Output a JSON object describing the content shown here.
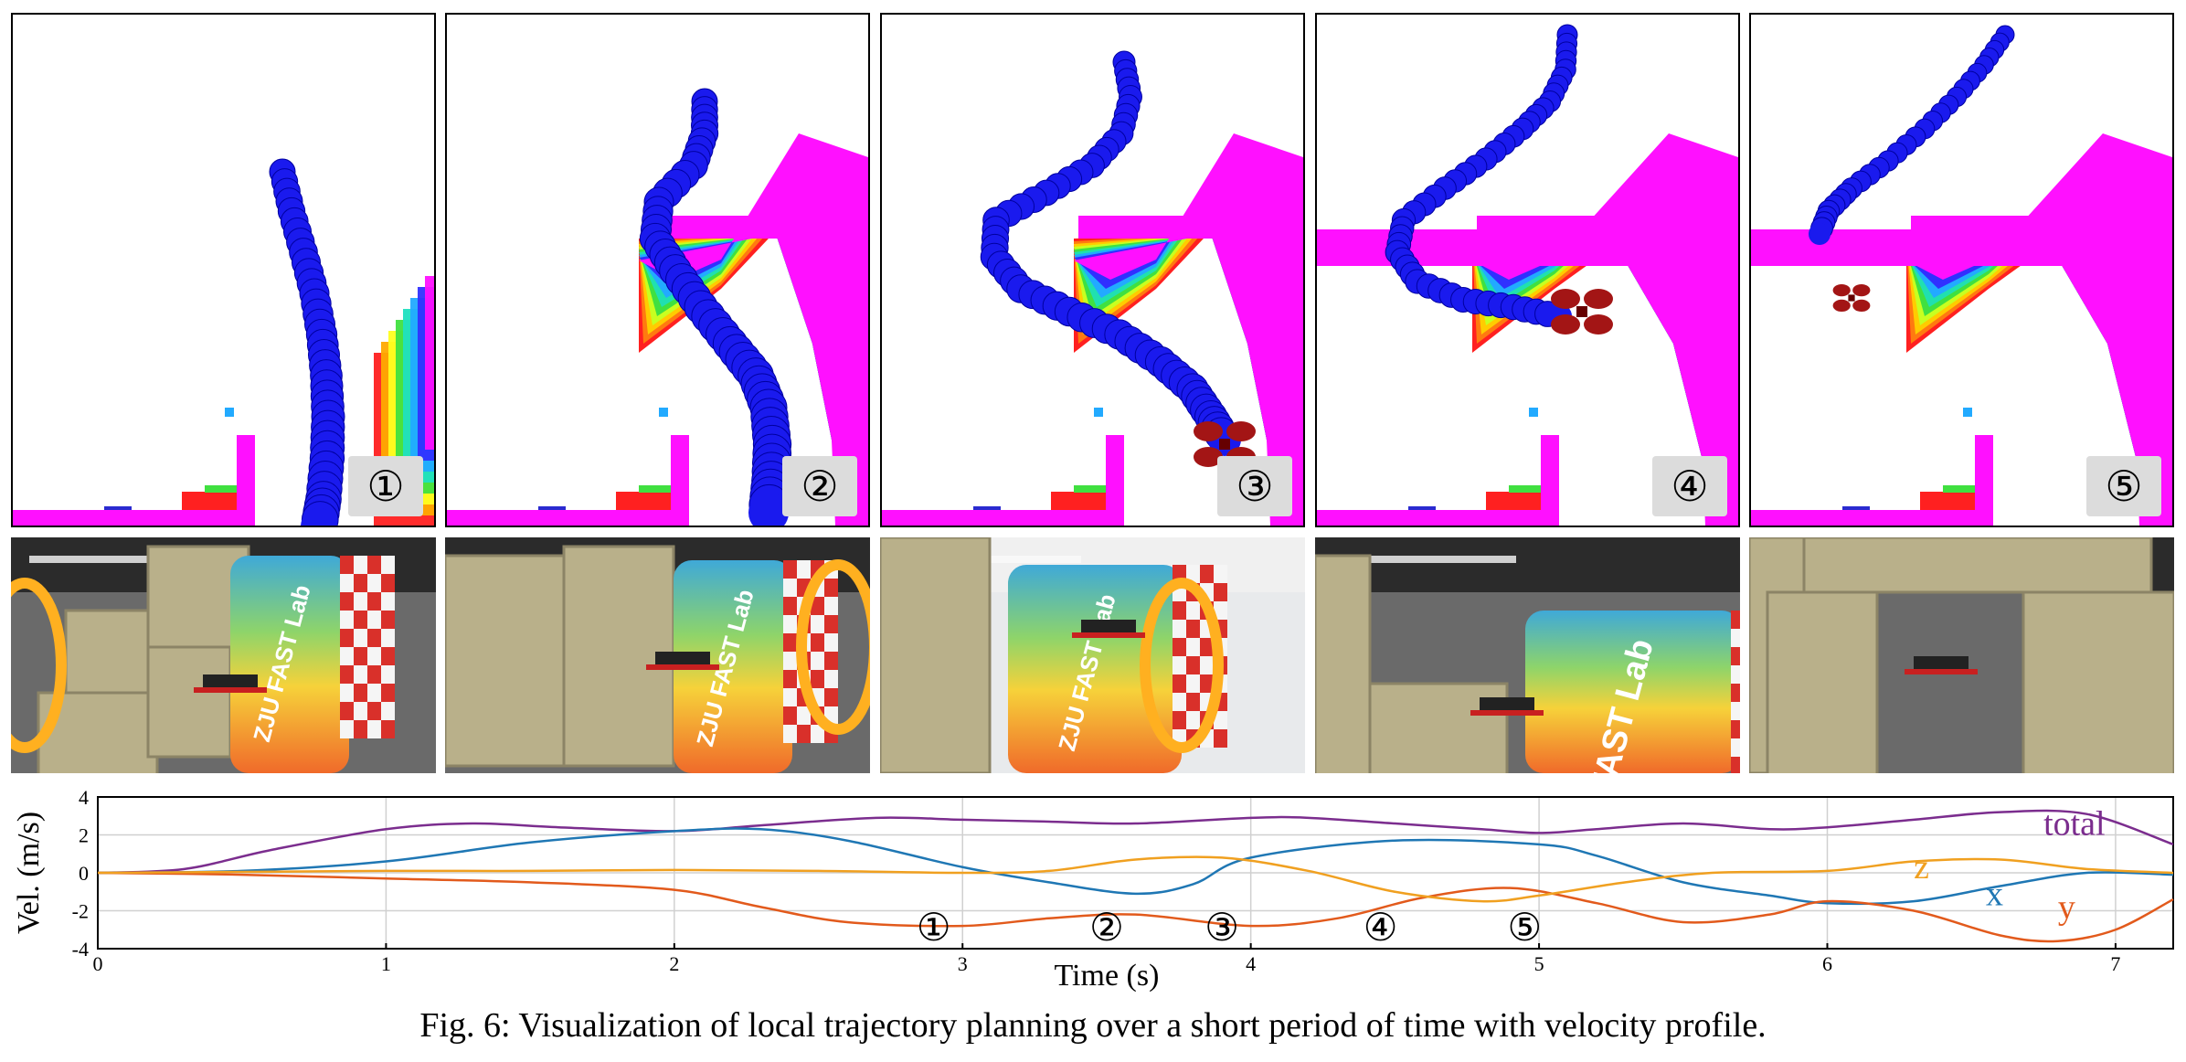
{
  "panels": [
    {
      "marker": "①"
    },
    {
      "marker": "②"
    },
    {
      "marker": "③"
    },
    {
      "marker": "④"
    },
    {
      "marker": "⑤"
    }
  ],
  "photos": [
    {
      "sign_text": "ZJU FAST Lab"
    },
    {
      "sign_text": "ZJU FAST Lab"
    },
    {
      "sign_text": "ZJU FAST Lab"
    },
    {
      "sign_text": "FAST Lab"
    },
    {
      "sign_text": ""
    }
  ],
  "colors": {
    "trajectory": "#1a1aee",
    "drone": "#a31515",
    "magenta": "#ff10ff",
    "total": "#7b2d8e",
    "x": "#1f77b4",
    "y": "#e25a1c",
    "z": "#f0a020"
  },
  "chart_data": {
    "type": "line",
    "xlabel": "Time (s)",
    "ylabel": "Vel. (m/s)",
    "xlim": [
      0,
      7.2
    ],
    "ylim": [
      -4,
      4
    ],
    "xticks": [
      "0",
      "1",
      "2",
      "3",
      "4",
      "5",
      "6",
      "7"
    ],
    "yticks": [
      "4",
      "2",
      "0",
      "-2",
      "-4"
    ],
    "grid": true,
    "series": [
      {
        "name": "total",
        "color": "#7b2d8e",
        "x": [
          0,
          0.3,
          0.6,
          1.0,
          1.3,
          1.6,
          2.0,
          2.3,
          2.7,
          3.0,
          3.3,
          3.6,
          4.0,
          4.2,
          4.5,
          4.8,
          5.0,
          5.2,
          5.5,
          5.8,
          6.0,
          6.3,
          6.6,
          6.9,
          7.2
        ],
        "y": [
          0,
          0.2,
          1.2,
          2.3,
          2.6,
          2.4,
          2.2,
          2.5,
          2.9,
          2.8,
          2.7,
          2.6,
          2.9,
          2.9,
          2.6,
          2.3,
          2.1,
          2.3,
          2.6,
          2.3,
          2.4,
          2.8,
          3.2,
          3.1,
          1.5
        ]
      },
      {
        "name": "x",
        "color": "#1f77b4",
        "x": [
          0,
          0.5,
          1.0,
          1.5,
          2.0,
          2.3,
          2.6,
          3.0,
          3.3,
          3.6,
          3.8,
          4.0,
          4.5,
          5.0,
          5.2,
          5.5,
          5.8,
          6.0,
          6.3,
          6.6,
          6.9,
          7.2
        ],
        "y": [
          0,
          0.1,
          0.6,
          1.6,
          2.2,
          2.3,
          1.7,
          0.3,
          -0.5,
          -1.1,
          -0.6,
          0.8,
          1.7,
          1.5,
          0.9,
          -0.5,
          -1.2,
          -1.6,
          -1.5,
          -0.7,
          0,
          -0.1
        ]
      },
      {
        "name": "y",
        "color": "#e25a1c",
        "x": [
          0,
          0.5,
          1.0,
          1.5,
          2.0,
          2.3,
          2.6,
          3.0,
          3.3,
          3.6,
          4.0,
          4.3,
          4.6,
          4.9,
          5.2,
          5.5,
          5.8,
          6.0,
          6.3,
          6.6,
          6.8,
          7.0,
          7.2
        ],
        "y": [
          0,
          -0.1,
          -0.3,
          -0.5,
          -0.9,
          -1.8,
          -2.6,
          -2.8,
          -2.4,
          -2.2,
          -2.8,
          -2.4,
          -1.3,
          -0.8,
          -1.6,
          -2.6,
          -2.2,
          -1.5,
          -2.0,
          -3.3,
          -3.6,
          -3.0,
          -1.4
        ]
      },
      {
        "name": "z",
        "color": "#f0a020",
        "x": [
          0,
          0.5,
          1.0,
          1.5,
          2.0,
          2.5,
          3.0,
          3.3,
          3.6,
          3.9,
          4.2,
          4.5,
          4.8,
          5.0,
          5.3,
          5.6,
          6.0,
          6.3,
          6.6,
          6.9,
          7.2
        ],
        "y": [
          0,
          0.05,
          0.1,
          0.1,
          0.15,
          0.1,
          0,
          0.1,
          0.7,
          0.8,
          0.1,
          -1.0,
          -1.5,
          -1.2,
          -0.5,
          0,
          0.1,
          0.6,
          0.7,
          0.2,
          0
        ]
      }
    ],
    "series_labels": [
      {
        "text": "total",
        "x": 6.75,
        "y": 2.0
      },
      {
        "text": "z",
        "x": 6.3,
        "y": -0.3
      },
      {
        "text": "x",
        "x": 6.55,
        "y": -1.7
      },
      {
        "text": "y",
        "x": 6.8,
        "y": -2.4
      }
    ],
    "annotations": [
      {
        "text": "①",
        "x": 2.9,
        "y": -2.9
      },
      {
        "text": "②",
        "x": 3.5,
        "y": -2.9
      },
      {
        "text": "③",
        "x": 3.9,
        "y": -2.9
      },
      {
        "text": "④",
        "x": 4.45,
        "y": -2.9
      },
      {
        "text": "⑤",
        "x": 4.95,
        "y": -2.9
      }
    ]
  },
  "caption": "Fig. 6: Visualization of local trajectory planning over a short period of time with velocity profile."
}
